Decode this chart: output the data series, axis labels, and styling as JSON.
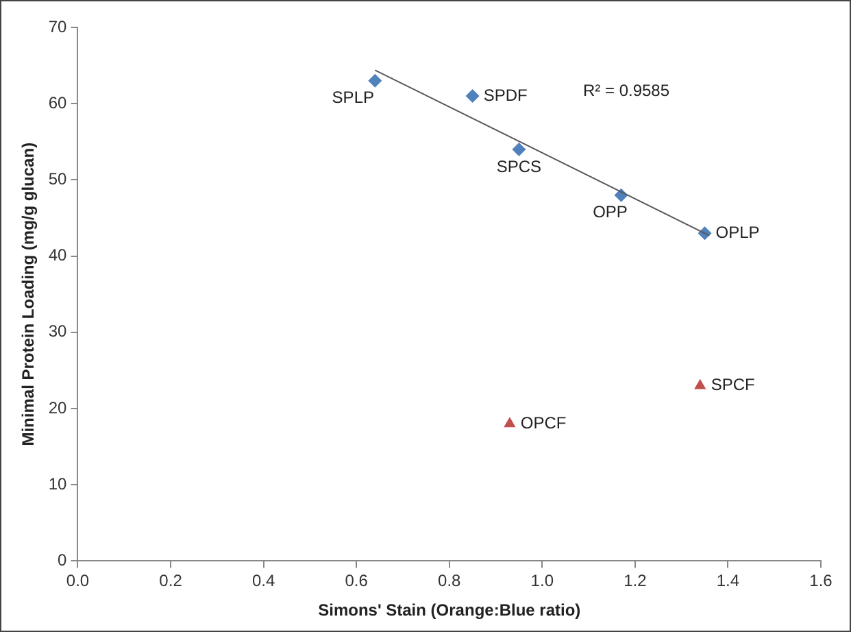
{
  "chart_data": {
    "type": "scatter",
    "xlabel": "Simons' Stain (Orange:Blue ratio)",
    "ylabel": "Minimal Protein Loading (mg/g glucan)",
    "xlim": [
      0,
      1.6
    ],
    "xticks": [
      {
        "value": 0,
        "label": "0.0"
      },
      {
        "value": 0.2,
        "label": "0.2"
      },
      {
        "value": 0.4,
        "label": "0.4"
      },
      {
        "value": 0.6,
        "label": "0.6"
      },
      {
        "value": 0.8,
        "label": "0.8"
      },
      {
        "value": 1,
        "label": "1.0"
      },
      {
        "value": 1.2,
        "label": "1.2"
      },
      {
        "value": 1.4,
        "label": "1.4"
      },
      {
        "value": 1.6,
        "label": "1.6"
      }
    ],
    "ylim": [
      0,
      70
    ],
    "yticks": [
      0,
      10,
      20,
      30,
      40,
      50,
      60,
      70
    ],
    "grid": false,
    "legend": false,
    "series": [
      {
        "type": "scatter",
        "color": "#4f81bd",
        "marker": "diamond",
        "x": [
          0.64,
          0.85,
          0.95,
          1.17,
          1.35
        ],
        "values": [
          63,
          61,
          54,
          48,
          43
        ]
      },
      {
        "type": "scatter",
        "color": "#c0504d",
        "marker": "triangle",
        "x": [
          0.93,
          1.34
        ],
        "values": [
          18,
          23
        ]
      },
      {
        "type": "line",
        "color": "#595959",
        "marker": "none",
        "x": [
          0.64,
          1.36
        ],
        "values": [
          64.4,
          42.7
        ]
      }
    ],
    "annotations": [
      {
        "text": "SPLP",
        "x": 0.64,
        "y": 63
      },
      {
        "text": "SPDF",
        "x": 0.85,
        "y": 61
      },
      {
        "text": "SPCS",
        "x": 0.95,
        "y": 54
      },
      {
        "text": "OPP",
        "x": 1.17,
        "y": 48
      },
      {
        "text": "OPLP",
        "x": 1.35,
        "y": 43
      },
      {
        "text": "OPCF",
        "x": 0.93,
        "y": 18
      },
      {
        "text": "SPCF",
        "x": 1.34,
        "y": 23
      },
      "R² = 0.9585"
    ]
  }
}
